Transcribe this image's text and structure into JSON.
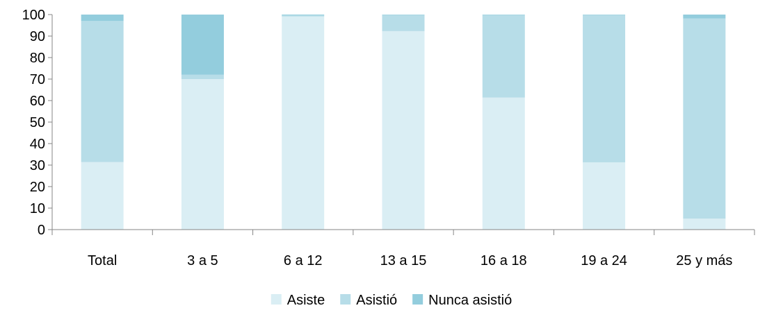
{
  "chart_data": {
    "type": "bar",
    "stacked": true,
    "title": "",
    "xlabel": "",
    "ylabel": "",
    "ylim": [
      0,
      100
    ],
    "yticks": [
      0,
      10,
      20,
      30,
      40,
      50,
      60,
      70,
      80,
      90,
      100
    ],
    "grid": false,
    "legend_position": "bottom",
    "categories": [
      "Total",
      "3 a 5",
      "6 a 12",
      "13 a 15",
      "16 a 18",
      "19 a 24",
      "25 y más"
    ],
    "series": [
      {
        "name": "Asiste",
        "color": "#daeef4",
        "values": [
          31.4,
          70.0,
          99.1,
          92.3,
          61.4,
          31.3,
          5.1
        ]
      },
      {
        "name": "Asistió",
        "color": "#b7dde8",
        "values": [
          65.6,
          2.0,
          0.5,
          7.5,
          38.4,
          68.5,
          93.1
        ]
      },
      {
        "name": "Nunca asistió",
        "color": "#93cddd",
        "values": [
          3.0,
          28.0,
          0.4,
          0.2,
          0.2,
          0.2,
          1.8
        ]
      }
    ]
  }
}
